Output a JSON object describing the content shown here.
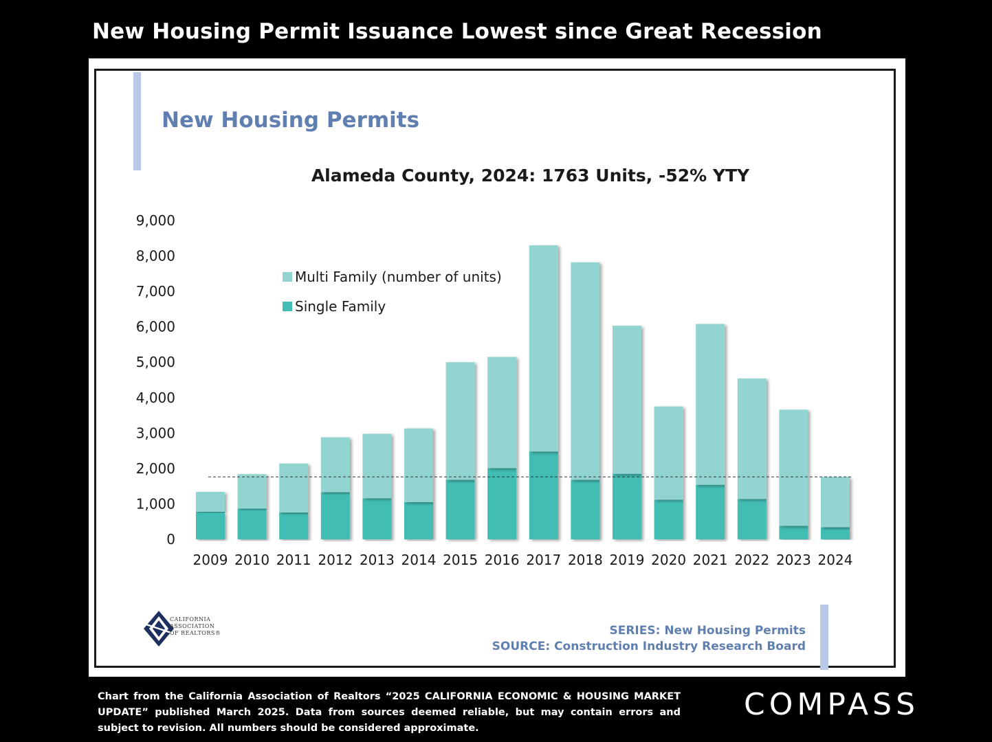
{
  "headline": "New Housing Permit Issuance Lowest since Great Recession",
  "slide": {
    "title": "New Housing Permits",
    "logo_text": "CALIFORNIA\nASSOCIATION\nOF REALTORS®",
    "series_label": "SERIES: New Housing Permits",
    "source_label": "SOURCE:  Construction Industry Research Board"
  },
  "footnote": "Chart from the California Association of Realtors “2025 CALIFORNIA ECONOMIC & HOUSING MARKET UPDATE” published March 2025. Data from sources deemed reliable, but may contain errors and subject to revision. All numbers should be considered approximate.",
  "brand": "COMPASS",
  "colors": {
    "multi_family": "#92d5d0",
    "single_family": "#43bdb3",
    "title_blue": "#5f7fb1",
    "accent_bar": "#b7c9e6"
  },
  "chart_data": {
    "type": "bar",
    "stacked": true,
    "title": "Alameda County, 2024: 1763 Units, -52% YTY",
    "categories": [
      "2009",
      "2010",
      "2011",
      "2012",
      "2013",
      "2014",
      "2015",
      "2016",
      "2017",
      "2018",
      "2019",
      "2020",
      "2021",
      "2022",
      "2023",
      "2024"
    ],
    "series": [
      {
        "name": "Single Family",
        "color": "#43bdb3",
        "values": [
          780,
          870,
          760,
          1330,
          1160,
          1050,
          1680,
          2010,
          2480,
          1680,
          1850,
          1120,
          1540,
          1140,
          380,
          340
        ]
      },
      {
        "name": "Multi Family (number of units)",
        "color": "#92d5d0",
        "values": [
          560,
          970,
          1380,
          1550,
          1820,
          2080,
          3320,
          3140,
          5820,
          6140,
          4180,
          2630,
          4540,
          3400,
          3280,
          1423
        ]
      }
    ],
    "yticks": [
      "0",
      "1,000",
      "2,000",
      "3,000",
      "4,000",
      "5,000",
      "6,000",
      "7,000",
      "8,000",
      "9,000"
    ],
    "ylim": [
      0,
      9000
    ],
    "reference_line": 1763,
    "legend_position": "top-left",
    "grid": false
  }
}
